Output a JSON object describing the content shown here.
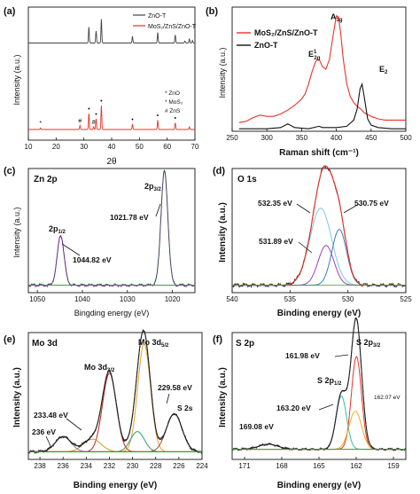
{
  "chart_data": [
    {
      "type": "line",
      "panel": "(a)",
      "title": "",
      "xlabel": "2θ",
      "ylabel": "Intensity (a.u.)",
      "xlim": [
        10,
        70
      ],
      "xticks": [
        10,
        20,
        30,
        40,
        50,
        60,
        70
      ],
      "grid": false,
      "legend_position": "top-right",
      "series": [
        {
          "name": "ZnO-T",
          "color": "#444444",
          "baseline": 0.73,
          "peaks": [
            [
              31.8,
              0.12
            ],
            [
              34.4,
              0.09
            ],
            [
              36.3,
              0.18
            ],
            [
              47.5,
              0.05
            ],
            [
              56.6,
              0.08
            ],
            [
              62.9,
              0.06
            ],
            [
              66.4,
              0.015
            ],
            [
              68.0,
              0.03
            ],
            [
              69.1,
              0.02
            ]
          ]
        },
        {
          "name": "MoS₂/ZnS/ZnO-T",
          "color": "#e8332a",
          "baseline": 0.08,
          "peaks": [
            [
              14.4,
              0.012
            ],
            [
              28.6,
              0.03
            ],
            [
              31.8,
              0.12
            ],
            [
              33.5,
              0.02
            ],
            [
              34.4,
              0.08
            ],
            [
              36.3,
              0.18
            ],
            [
              47.5,
              0.04
            ],
            [
              56.6,
              0.07
            ],
            [
              62.9,
              0.05
            ],
            [
              68.0,
              0.02
            ]
          ]
        }
      ],
      "annotations": {
        "legend2": [
          "* ZnO",
          "* MoS₂",
          "# ZnS"
        ],
        "markers": [
          {
            "x": 14.4,
            "symbol": "*"
          },
          {
            "x": 28.6,
            "symbol": "#"
          },
          {
            "x": 31.8,
            "symbol": "•"
          },
          {
            "x": 33.5,
            "symbol": "#"
          },
          {
            "x": 34.4,
            "symbol": "•"
          },
          {
            "x": 36.3,
            "symbol": "•"
          },
          {
            "x": 47.5,
            "symbol": "•"
          },
          {
            "x": 56.6,
            "symbol": "•"
          },
          {
            "x": 62.9,
            "symbol": "•"
          }
        ]
      }
    },
    {
      "type": "line",
      "panel": "(b)",
      "title": "",
      "xlabel": "Raman shift (cm⁻¹)",
      "ylabel": "Intensity (a.u.)",
      "xlim": [
        250,
        500
      ],
      "xticks": [
        250,
        300,
        350,
        400,
        450,
        500
      ],
      "grid": false,
      "legend_position": "top-left",
      "series": [
        {
          "name": "MoS₂/ZnS/ZnO-T",
          "color": "#e8332a",
          "points": [
            [
              260,
              0.07
            ],
            [
              270,
              0.08
            ],
            [
              280,
              0.11
            ],
            [
              290,
              0.13
            ],
            [
              300,
              0.12
            ],
            [
              310,
              0.12
            ],
            [
              320,
              0.14
            ],
            [
              330,
              0.17
            ],
            [
              340,
              0.21
            ],
            [
              350,
              0.26
            ],
            [
              355,
              0.3
            ],
            [
              360,
              0.38
            ],
            [
              365,
              0.48
            ],
            [
              370,
              0.56
            ],
            [
              373,
              0.58
            ],
            [
              376,
              0.57
            ],
            [
              380,
              0.52
            ],
            [
              385,
              0.5
            ],
            [
              390,
              0.58
            ],
            [
              395,
              0.76
            ],
            [
              400,
              0.93
            ],
            [
              403,
              0.92
            ],
            [
              406,
              0.8
            ],
            [
              410,
              0.58
            ],
            [
              415,
              0.38
            ],
            [
              420,
              0.28
            ],
            [
              425,
              0.23
            ],
            [
              430,
              0.2
            ],
            [
              435,
              0.18
            ],
            [
              440,
              0.15
            ],
            [
              450,
              0.12
            ],
            [
              460,
              0.1
            ],
            [
              470,
              0.09
            ],
            [
              480,
              0.09
            ],
            [
              490,
              0.09
            ],
            [
              500,
              0.09
            ]
          ]
        },
        {
          "name": "ZnO-T",
          "color": "#111111",
          "points": [
            [
              260,
              0.02
            ],
            [
              280,
              0.02
            ],
            [
              300,
              0.02
            ],
            [
              320,
              0.03
            ],
            [
              330,
              0.06
            ],
            [
              340,
              0.03
            ],
            [
              360,
              0.02
            ],
            [
              375,
              0.04
            ],
            [
              380,
              0.03
            ],
            [
              400,
              0.03
            ],
            [
              415,
              0.04
            ],
            [
              425,
              0.09
            ],
            [
              430,
              0.18
            ],
            [
              434,
              0.34
            ],
            [
              437,
              0.38
            ],
            [
              440,
              0.28
            ],
            [
              445,
              0.1
            ],
            [
              450,
              0.05
            ],
            [
              460,
              0.03
            ],
            [
              480,
              0.02
            ],
            [
              500,
              0.02
            ]
          ]
        }
      ],
      "annotations": [
        {
          "text": "A",
          "sub": "1g",
          "x": 401
        },
        {
          "text": "E",
          "sup": "1",
          "sub": "2g",
          "x": 373
        },
        {
          "text": "E",
          "sub": "2",
          "x": 437
        }
      ]
    },
    {
      "type": "line",
      "panel": "(c)",
      "label": "Zn 2p",
      "title": "",
      "xlabel": "Bingding energy (eV)",
      "ylabel": "Intensity (a.u.)",
      "xlim": [
        1052,
        1015
      ],
      "xticks": [
        1050,
        1040,
        1030,
        1020
      ],
      "grid": false,
      "peaks": [
        {
          "name": "2p₃/₂",
          "center": 1021.78,
          "height": 0.92,
          "fwhm": 1.8,
          "label": "1021.78 eV"
        },
        {
          "name": "2p₁/₂",
          "center": 1044.82,
          "height": 0.4,
          "fwhm": 1.8,
          "label": "1044.82 eV"
        }
      ],
      "colors": {
        "raw": "#5a2a7a",
        "fit_a": "#3cc03c",
        "fit_b": "#a066d0",
        "baseline": "#3a9a3a"
      }
    },
    {
      "type": "line",
      "panel": "(d)",
      "label": "O 1s",
      "title": "",
      "xlabel": "Binding energy (eV)",
      "ylabel": "Intensity (a.u.)",
      "xlim": [
        540,
        525
      ],
      "xticks": [
        540,
        535,
        530,
        525
      ],
      "grid": false,
      "peaks": [
        {
          "center": 532.35,
          "height": 0.62,
          "fwhm": 2.2,
          "label": "532.35 eV",
          "color": "#7ec8e8"
        },
        {
          "center": 531.89,
          "height": 0.32,
          "fwhm": 1.6,
          "label": "531.89 eV",
          "color": "#a040b0"
        },
        {
          "center": 530.75,
          "height": 0.45,
          "fwhm": 1.5,
          "label": "530.75 eV",
          "color": "#3a7ac8"
        }
      ],
      "colors": {
        "raw": "#222222",
        "envelope": "#e8332a"
      }
    },
    {
      "type": "line",
      "panel": "(e)",
      "label": "Mo 3d",
      "title": "",
      "xlabel": "Binding energy (eV)",
      "ylabel": "Intensity (a.u.)",
      "xlim": [
        239,
        224
      ],
      "xticks": [
        238,
        236,
        234,
        232,
        230,
        228,
        226,
        224
      ],
      "grid": false,
      "peaks": [
        {
          "center": 232.0,
          "height": 0.62,
          "fwhm": 1.4,
          "label": "Mo 3d₃/₂",
          "color": "#c02020"
        },
        {
          "center": 229.0,
          "height": 0.85,
          "fwhm": 1.3,
          "label": "Mo 3d₅/₂",
          "color": "#e8a020"
        },
        {
          "center": 229.58,
          "height": 0.16,
          "fwhm": 1.4,
          "label": "229.58 eV",
          "color": "#2aa070"
        },
        {
          "center": 233.48,
          "height": 0.1,
          "fwhm": 1.8,
          "label": "233.48 eV",
          "color": "#c0a020"
        },
        {
          "center": 236.0,
          "height": 0.12,
          "fwhm": 1.6,
          "label": "236 eV",
          "color": "#a070c0"
        },
        {
          "center": 226.4,
          "height": 0.3,
          "fwhm": 1.6,
          "label": "S 2s",
          "color": "#a05030"
        }
      ],
      "colors": {
        "raw": "#222222",
        "envelope": "#222222"
      }
    },
    {
      "type": "line",
      "panel": "(f)",
      "label": "S 2p",
      "title": "",
      "xlabel": "Binding energy (eV)",
      "ylabel": "Intensity (a.u.)",
      "xlim": [
        172,
        158
      ],
      "xticks": [
        171,
        168,
        165,
        162,
        159
      ],
      "grid": false,
      "peaks": [
        {
          "center": 161.98,
          "height": 0.73,
          "fwhm": 0.95,
          "label": "S 2p₃/₂",
          "sublabel": "161.98 eV",
          "color": "#e8332a"
        },
        {
          "center": 163.2,
          "height": 0.42,
          "fwhm": 1.0,
          "label": "S 2p₁/₂",
          "sublabel": "163.20 eV",
          "color": "#30c0a0"
        },
        {
          "center": 162.07,
          "height": 0.3,
          "fwhm": 1.2,
          "label": "162.07 eV",
          "color": "#e8b020"
        },
        {
          "center": 169.08,
          "height": 0.04,
          "fwhm": 1.8,
          "label": "169.08 eV",
          "color": "#3aaa3a"
        }
      ],
      "colors": {
        "raw": "#222222",
        "envelope": "#222222"
      }
    }
  ],
  "panels": {
    "a": {
      "tag": "(a)",
      "ylabel": "Intensity (a.u.)",
      "xlabel": "2θ",
      "legend": [
        "ZnO-T",
        "MoS₂/ZnS/ZnO-T"
      ],
      "legend2": [
        "* ZnO",
        "* MoS₂",
        "# ZnS"
      ]
    },
    "b": {
      "tag": "(b)",
      "ylabel": "Intensity (a.u.)",
      "xlabel": "Raman shift (cm⁻¹)",
      "legend": [
        "MoS₂/ZnS/ZnO-T",
        "ZnO-T"
      ],
      "a1g": "A1g",
      "e12g": "E12g",
      "e2": "E2"
    },
    "c": {
      "tag": "(c)",
      "label": "Zn 2p",
      "ylabel": "Intensity (a.u.)",
      "xlabel": "Bingding energy (eV)",
      "p32": "2p3/2",
      "p12": "2p1/2",
      "e1": "1021.78 eV",
      "e2": "1044.82 eV"
    },
    "d": {
      "tag": "(d)",
      "label": "O 1s",
      "ylabel": "Intensity (a.u.)",
      "xlabel": "Binding energy (eV)",
      "e1": "532.35 eV",
      "e2": "530.75 eV",
      "e3": "531.89 eV"
    },
    "e": {
      "tag": "(e)",
      "label": "Mo 3d",
      "ylabel": "Intensity (a.u.)",
      "xlabel": "Binding energy (eV)",
      "mo52": "Mo 3d5/2",
      "mo32": "Mo 3d3/2",
      "e1": "229.58 eV",
      "e2": "233.48 eV",
      "e3": "236 eV",
      "s2s": "S 2s"
    },
    "f": {
      "tag": "(f)",
      "label": "S 2p",
      "ylabel": "Intensity (a.u.)",
      "xlabel": "Binding energy (eV)",
      "p32": "S 2p3/2",
      "p12": "S 2p1/2",
      "e1": "161.98 eV",
      "e2": "163.20 eV",
      "e3": "162.07 eV",
      "e4": "169.08 eV"
    }
  }
}
